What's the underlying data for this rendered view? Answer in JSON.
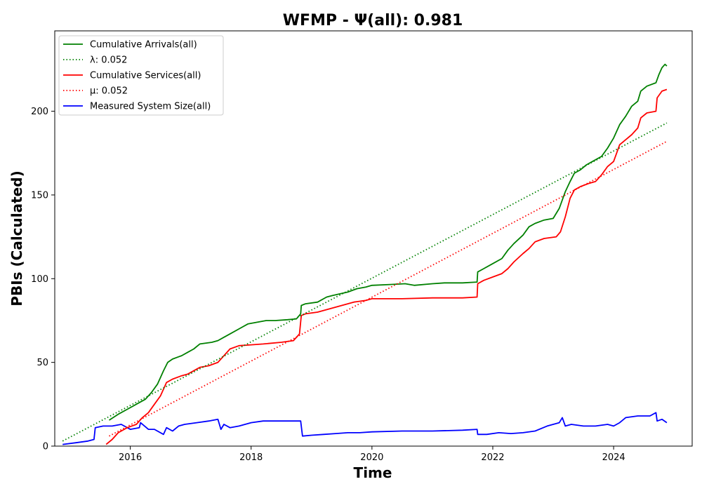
{
  "chart_data": {
    "type": "line",
    "title": "WFMP -  Ψ(all): 0.981",
    "xlabel": "Time",
    "ylabel": "PBIs (Calculated)",
    "xlim": [
      2014.75,
      2025.3
    ],
    "ylim": [
      0,
      248
    ],
    "xticks": [
      2016,
      2018,
      2020,
      2022,
      2024
    ],
    "yticks": [
      0,
      50,
      100,
      150,
      200
    ],
    "legend_position": "top-left",
    "series": [
      {
        "name": "Cumulative Arrivals(all)",
        "color": "#008000",
        "style": "solid",
        "x": [
          2015.65,
          2015.8,
          2015.95,
          2016.1,
          2016.25,
          2016.35,
          2016.45,
          2016.55,
          2016.62,
          2016.7,
          2016.85,
          2016.95,
          2017.05,
          2017.15,
          2017.35,
          2017.45,
          2017.55,
          2017.65,
          2017.8,
          2017.95,
          2018.1,
          2018.25,
          2018.4,
          2018.6,
          2018.75,
          2018.82,
          2018.83,
          2018.9,
          2019.1,
          2019.25,
          2019.35,
          2019.6,
          2019.75,
          2019.9,
          2020.0,
          2020.3,
          2020.55,
          2020.7,
          2021.0,
          2021.2,
          2021.5,
          2021.74,
          2021.75,
          2021.85,
          2022.0,
          2022.15,
          2022.25,
          2022.35,
          2022.5,
          2022.6,
          2022.7,
          2022.85,
          2023.0,
          2023.1,
          2023.2,
          2023.28,
          2023.35,
          2023.45,
          2023.55,
          2023.65,
          2023.8,
          2023.9,
          2024.0,
          2024.1,
          2024.2,
          2024.3,
          2024.4,
          2024.45,
          2024.55,
          2024.7,
          2024.75,
          2024.8,
          2024.85,
          2024.88
        ],
        "y": [
          15.5,
          19,
          22,
          25,
          28,
          32,
          37,
          45,
          50,
          52,
          54,
          56,
          58,
          61,
          62,
          63,
          65,
          67,
          70,
          73,
          74,
          75,
          75,
          75.5,
          76,
          79,
          84,
          85,
          86,
          89,
          90,
          92,
          94,
          95,
          96,
          96.5,
          97,
          96,
          97,
          97.5,
          97.5,
          98,
          104,
          106,
          109,
          112,
          117,
          121,
          126,
          131,
          133,
          135,
          136,
          142,
          152,
          158,
          163,
          165,
          168,
          170,
          173,
          178,
          184,
          192,
          197,
          203,
          206,
          212,
          215,
          217,
          222,
          226,
          228,
          227
        ]
      },
      {
        "name": "λ: 0.052",
        "color": "#008000",
        "style": "dotted",
        "x": [
          2014.88,
          2024.88
        ],
        "y": [
          3,
          193
        ]
      },
      {
        "name": "Cumulative Services(all)",
        "color": "#ff0000",
        "style": "solid",
        "x": [
          2015.6,
          2015.7,
          2015.8,
          2015.95,
          2016.1,
          2016.2,
          2016.3,
          2016.4,
          2016.5,
          2016.6,
          2016.7,
          2016.85,
          2016.95,
          2017.05,
          2017.15,
          2017.3,
          2017.45,
          2017.55,
          2017.65,
          2017.8,
          2018.0,
          2018.2,
          2018.5,
          2018.7,
          2018.8,
          2018.83,
          2018.9,
          2019.1,
          2019.3,
          2019.5,
          2019.7,
          2019.9,
          2020.0,
          2020.5,
          2021.0,
          2021.5,
          2021.74,
          2021.75,
          2021.85,
          2022.0,
          2022.15,
          2022.25,
          2022.35,
          2022.5,
          2022.6,
          2022.7,
          2022.85,
          2023.05,
          2023.12,
          2023.2,
          2023.28,
          2023.35,
          2023.45,
          2023.6,
          2023.7,
          2023.8,
          2023.9,
          2024.0,
          2024.1,
          2024.2,
          2024.3,
          2024.4,
          2024.45,
          2024.55,
          2024.7,
          2024.72,
          2024.8,
          2024.88
        ],
        "y": [
          1,
          4,
          8,
          11,
          13,
          17,
          20,
          25,
          30,
          38,
          40,
          42,
          43,
          45,
          47,
          48,
          50,
          54,
          58,
          60,
          60.5,
          61,
          62,
          63,
          67,
          78,
          79,
          80,
          82,
          84,
          86,
          87,
          88,
          88,
          88.5,
          88.5,
          89,
          97,
          99,
          101,
          103,
          106,
          110,
          115,
          118,
          122,
          124,
          125,
          128,
          137,
          148,
          153,
          155,
          157,
          158,
          162,
          167,
          170,
          180,
          183,
          186,
          190,
          196,
          199,
          200,
          208,
          212,
          213
        ]
      },
      {
        "name": "μ: 0.052",
        "color": "#ff0000",
        "style": "dotted",
        "x": [
          2015.65,
          2024.88
        ],
        "y": [
          6,
          182
        ]
      },
      {
        "name": "Measured System Size(all)",
        "color": "#0000ff",
        "style": "solid",
        "x": [
          2014.88,
          2015.1,
          2015.3,
          2015.4,
          2015.42,
          2015.55,
          2015.7,
          2015.85,
          2016.0,
          2016.15,
          2016.17,
          2016.3,
          2016.4,
          2016.55,
          2016.6,
          2016.7,
          2016.8,
          2016.9,
          2017.1,
          2017.3,
          2017.45,
          2017.5,
          2017.55,
          2017.65,
          2017.8,
          2018.0,
          2018.2,
          2018.35,
          2018.5,
          2018.82,
          2018.85,
          2019.0,
          2019.2,
          2019.4,
          2019.6,
          2019.8,
          2020.0,
          2020.5,
          2021.0,
          2021.5,
          2021.74,
          2021.75,
          2021.9,
          2022.1,
          2022.3,
          2022.5,
          2022.7,
          2022.9,
          2023.1,
          2023.15,
          2023.2,
          2023.3,
          2023.5,
          2023.7,
          2023.9,
          2024.0,
          2024.1,
          2024.2,
          2024.4,
          2024.6,
          2024.7,
          2024.72,
          2024.8,
          2024.88
        ],
        "y": [
          1,
          2,
          3,
          4,
          11,
          12,
          12,
          13,
          10,
          11,
          14,
          10,
          10,
          7,
          11,
          9,
          12,
          13,
          14,
          15,
          16,
          10,
          13,
          11,
          12,
          14,
          15,
          15,
          15,
          15,
          6,
          6.5,
          7,
          7.5,
          8,
          8,
          8.5,
          9,
          9,
          9.5,
          10,
          7,
          7,
          8,
          7.5,
          8,
          9,
          12,
          14,
          17,
          12,
          13,
          12,
          12,
          13,
          12,
          14,
          17,
          18,
          18,
          20,
          15,
          16,
          14
        ]
      }
    ]
  }
}
